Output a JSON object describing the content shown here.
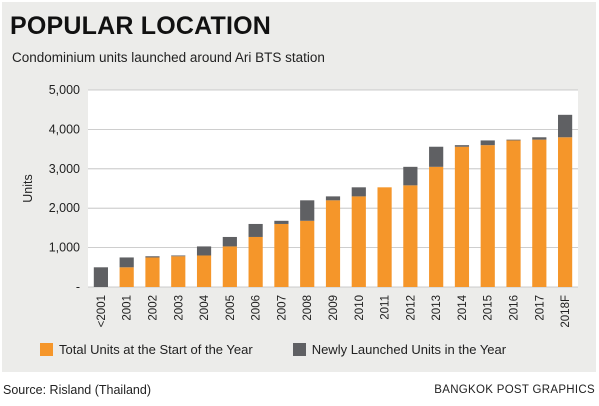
{
  "header": {
    "title": "POPULAR LOCATION",
    "subtitle": "Condominium units launched around Ari BTS station"
  },
  "chart_data": {
    "type": "bar",
    "stacked": true,
    "categories": [
      "<2001",
      "2001",
      "2002",
      "2003",
      "2004",
      "2005",
      "2006",
      "2007",
      "2008",
      "2009",
      "2010",
      "2011",
      "2012",
      "2013",
      "2014",
      "2015",
      "2016",
      "2017",
      "2018F"
    ],
    "series": [
      {
        "name": "Total Units at the Start of the Year",
        "color": "#f5962a",
        "values": [
          0,
          500,
          750,
          780,
          800,
          1030,
          1270,
          1600,
          1680,
          2200,
          2300,
          2530,
          2580,
          3050,
          3560,
          3600,
          3720,
          3740,
          3800
        ]
      },
      {
        "name": "Newly Launched Units in the Year",
        "color": "#5f6063",
        "values": [
          500,
          250,
          30,
          20,
          230,
          240,
          330,
          80,
          520,
          100,
          230,
          0,
          470,
          510,
          40,
          120,
          20,
          60,
          570
        ]
      }
    ],
    "ylabel": "Units",
    "ylim": [
      0,
      5000
    ],
    "yticks": [
      0,
      1000,
      2000,
      3000,
      4000,
      5000
    ],
    "ytick_labels": [
      "-",
      "1,000",
      "2,000",
      "3,000",
      "4,000",
      "5,000"
    ],
    "grid": true,
    "legend_position": "bottom"
  },
  "footer": {
    "source": "Source: Risland (Thailand)",
    "credit": "BANGKOK POST GRAPHICS"
  }
}
